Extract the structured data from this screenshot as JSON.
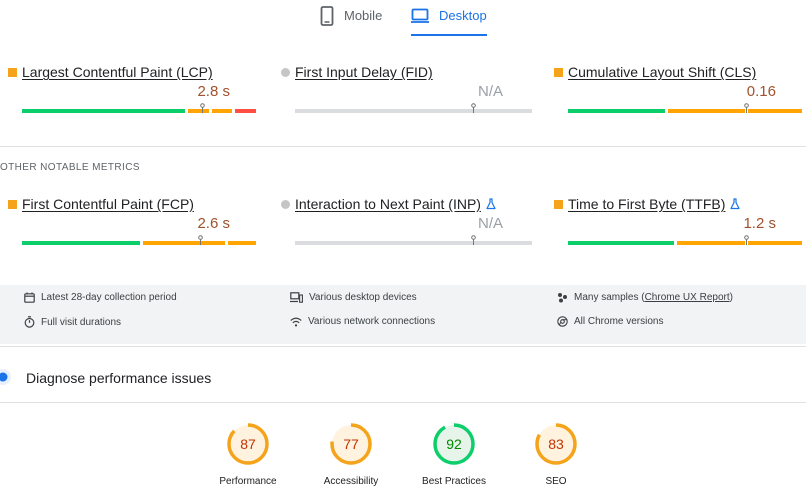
{
  "tabs": {
    "mobile": "Mobile",
    "desktop": "Desktop",
    "active": "desktop"
  },
  "core_metrics": [
    {
      "name": "Largest Contentful Paint (LCP)",
      "value": "2.8 s",
      "status": "orange-square",
      "distribution": [
        70,
        10,
        10,
        10
      ],
      "marker": 0.76
    },
    {
      "name": "First Input Delay (FID)",
      "value": "N/A",
      "status": "gray-circle",
      "distribution": [],
      "marker": 0.75
    },
    {
      "name": "Cumulative Layout Shift (CLS)",
      "value": "0.16",
      "status": "orange-square",
      "distribution": [
        42,
        34,
        24,
        0
      ],
      "marker": 0.75
    }
  ],
  "other_label": "OTHER NOTABLE METRICS",
  "other_metrics": [
    {
      "name": "First Contentful Paint (FCP)",
      "value": "2.6 s",
      "status": "orange-square",
      "flask": false,
      "distribution": [
        51,
        36,
        13,
        0
      ],
      "marker": 0.75
    },
    {
      "name": "Interaction to Next Paint (INP)",
      "value": "N/A",
      "status": "gray-circle",
      "flask": true,
      "distribution": [],
      "marker": 0.75
    },
    {
      "name": "Time to First Byte (TTFB)",
      "value": "1.2 s",
      "status": "orange-square",
      "flask": true,
      "distribution": [
        46,
        30,
        24,
        0
      ],
      "marker": 0.75
    }
  ],
  "info": {
    "period": "Latest 28-day collection period",
    "devices": "Various desktop devices",
    "samples_prefix": "Many samples (",
    "samples_link": "Chrome UX Report",
    "samples_suffix": ")",
    "durations": "Full visit durations",
    "network": "Various network connections",
    "versions": "All Chrome versions"
  },
  "diagnose": {
    "title": "Diagnose performance issues"
  },
  "scores": [
    {
      "label": "Performance",
      "value": "87",
      "score": 87,
      "color": "#f4a31a",
      "text_color": "#c33300"
    },
    {
      "label": "Accessibility",
      "value": "77",
      "score": 77,
      "color": "#f4a31a",
      "text_color": "#c33300"
    },
    {
      "label": "Best Practices",
      "value": "92",
      "score": 92,
      "color": "#0cce6b",
      "text_color": "#008800"
    },
    {
      "label": "SEO",
      "value": "83",
      "score": 83,
      "color": "#f4a31a",
      "text_color": "#c33300"
    }
  ],
  "colors": {
    "good": "#0cce6b",
    "average": "#ffa400",
    "poor": "#ff4e42",
    "neutral": "#dadce0",
    "accent": "#1a73e8"
  }
}
